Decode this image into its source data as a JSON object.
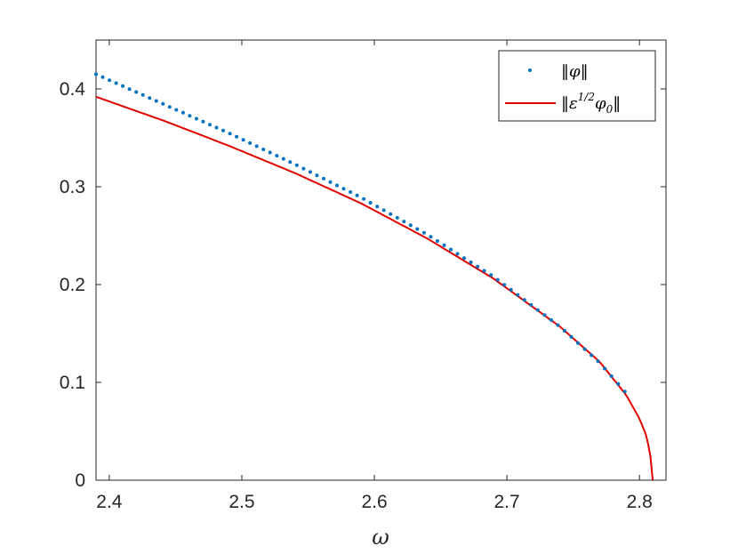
{
  "chart_data": {
    "type": "line",
    "xlabel": "ω",
    "ylabel": "",
    "xlim": [
      2.39,
      2.82
    ],
    "ylim": [
      0,
      0.45
    ],
    "xticks": [
      2.4,
      2.5,
      2.6,
      2.7,
      2.8
    ],
    "xtick_labels": [
      "2.4",
      "2.5",
      "2.6",
      "2.7",
      "2.8"
    ],
    "yticks": [
      0,
      0.1,
      0.2,
      0.3,
      0.4
    ],
    "ytick_labels": [
      "0",
      "0.1",
      "0.2",
      "0.3",
      "0.4"
    ],
    "grid": false,
    "legend_position": "top-right",
    "series": [
      {
        "name": "‖φ‖",
        "style": "dotted",
        "color": "#0072BD",
        "x": [
          2.39,
          2.44,
          2.49,
          2.54,
          2.59,
          2.64,
          2.69,
          2.74,
          2.77,
          2.792
        ],
        "y": [
          0.415,
          0.385,
          0.355,
          0.323,
          0.289,
          0.251,
          0.208,
          0.157,
          0.12,
          0.086
        ]
      },
      {
        "name": "‖ε^{1/2}φ_0‖",
        "style": "solid",
        "color": "#E00000",
        "x": [
          2.39,
          2.44,
          2.49,
          2.54,
          2.59,
          2.64,
          2.69,
          2.74,
          2.77,
          2.79,
          2.8,
          2.805,
          2.808,
          2.81
        ],
        "y": [
          0.392,
          0.368,
          0.342,
          0.314,
          0.283,
          0.247,
          0.206,
          0.157,
          0.121,
          0.087,
          0.063,
          0.046,
          0.028,
          0.0
        ]
      }
    ]
  }
}
